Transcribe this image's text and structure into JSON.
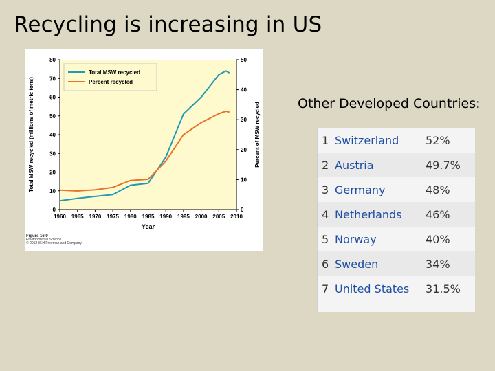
{
  "slide": {
    "title": "Recycling is increasing in US",
    "countries_heading": "Other Developed Countries:"
  },
  "figure": {
    "label": "Figure 16.9",
    "source": "Environmental Science",
    "copyright": "© 2012 W.H.Freeman and Company"
  },
  "chart_data": {
    "type": "line",
    "xlabel": "Year",
    "ylabel_left": "Total MSW recycled (millions of metric tons)",
    "ylabel_right": "Percent of MSW recycled",
    "xlim": [
      1960,
      2010
    ],
    "ylim_left": [
      0,
      80
    ],
    "ylim_right": [
      0,
      50
    ],
    "x_ticks": [
      1960,
      1965,
      1970,
      1975,
      1980,
      1985,
      1990,
      1995,
      2000,
      2005,
      2010
    ],
    "y_ticks_left": [
      0,
      10,
      20,
      30,
      40,
      50,
      60,
      70,
      80
    ],
    "y_ticks_right": [
      0,
      10,
      20,
      30,
      40,
      50
    ],
    "grid": false,
    "legend_position": "top-left",
    "series": [
      {
        "name": "Total MSW recycled",
        "axis": "left",
        "color": "#1f9bb5",
        "x": [
          1960,
          1965,
          1970,
          1975,
          1980,
          1985,
          1990,
          1995,
          2000,
          2005,
          2007,
          2008
        ],
        "values": [
          4.7,
          6.0,
          7.0,
          8.0,
          13.0,
          14.0,
          28.0,
          51.0,
          60.0,
          72.0,
          74.0,
          73.0
        ]
      },
      {
        "name": "Percent recycled",
        "axis": "right",
        "color": "#e8742a",
        "x": [
          1960,
          1965,
          1970,
          1975,
          1980,
          1985,
          1990,
          1995,
          2000,
          2005,
          2007,
          2008
        ],
        "values": [
          6.5,
          6.2,
          6.6,
          7.4,
          9.7,
          10.1,
          16.2,
          25.0,
          29.0,
          32.0,
          32.8,
          32.5
        ]
      }
    ]
  },
  "recycling_rates": {
    "rows": [
      {
        "rank": "1",
        "country": "Switzerland",
        "rate": "52%"
      },
      {
        "rank": "2",
        "country": "Austria",
        "rate": "49.7%"
      },
      {
        "rank": "3",
        "country": "Germany",
        "rate": "48%"
      },
      {
        "rank": "4",
        "country": "Netherlands",
        "rate": "46%"
      },
      {
        "rank": "5",
        "country": "Norway",
        "rate": "40%"
      },
      {
        "rank": "6",
        "country": "Sweden",
        "rate": "34%"
      },
      {
        "rank": "7",
        "country": "United States",
        "rate": "31.5%"
      }
    ]
  }
}
